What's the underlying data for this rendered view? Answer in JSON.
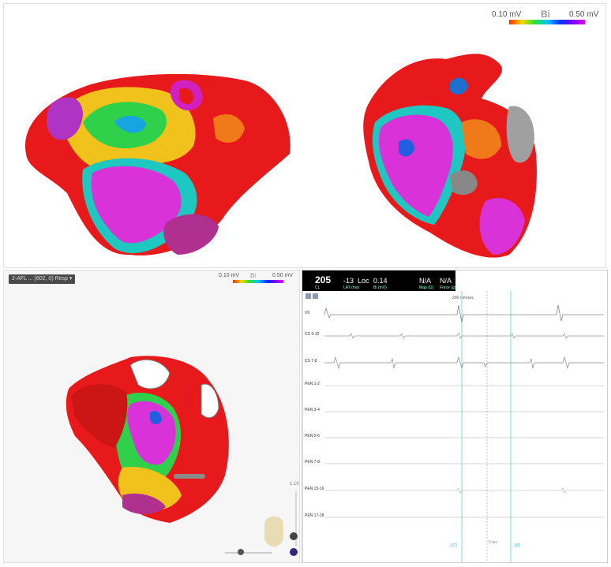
{
  "top_scale": {
    "min_label": "0.10 mV",
    "mid_label": "Bi",
    "max_label": "0.50 mV"
  },
  "bottom_left": {
    "map_dropdown": "2-AFL ... (602, 0) Resp",
    "scale": {
      "min_label": "0.10 mV",
      "mid_label": "Bi",
      "max_label": "0.50 mV"
    },
    "zoom_value": "1.10"
  },
  "ecg": {
    "header": {
      "cl_value": "205",
      "cl_label": "CL",
      "lat_value": "-13",
      "lat_label": "LAT (ms)",
      "loc_label": "Loc",
      "bi_value": "0.14",
      "bi_label": "Bi (mV)",
      "na1_value": "N/A",
      "na1_label": "Map (Ω)",
      "na2_value": "N/A",
      "na2_label": "Force (g)"
    },
    "sweep_label": "200 mm/sec",
    "channels": [
      "V6",
      "CS 9-10",
      "CS 7-8",
      "PEN 1-2",
      "PEN 3-4",
      "PEN 5-6",
      "PEN 7-8",
      "PEN 15-16",
      "PEN 17-18"
    ],
    "bottom_labels": {
      "left": "-373",
      "mid": "0 ms",
      "right": "180"
    }
  },
  "colors": {
    "scale_min": "#ff2a00",
    "scale_max": "#e000ff",
    "marker_cyan": "#7fd8e0"
  }
}
